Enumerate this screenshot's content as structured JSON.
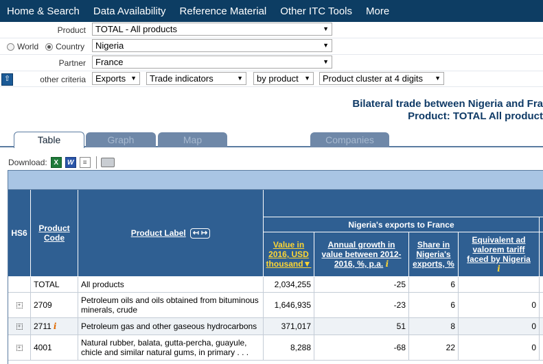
{
  "nav": [
    "Home & Search",
    "Data Availability",
    "Reference Material",
    "Other ITC Tools",
    "More"
  ],
  "criteria": {
    "product_label": "Product",
    "product_value": "TOTAL - All products",
    "world_label": "World",
    "country_label": "Country",
    "country_value": "Nigeria",
    "partner_label": "Partner",
    "partner_value": "France",
    "other_label": "other criteria",
    "flow_value": "Exports",
    "indicator_value": "Trade indicators",
    "by_value": "by product",
    "cluster_value": "Product cluster at 4 digits"
  },
  "title": {
    "line1": "Bilateral trade between Nigeria and Fra",
    "line2": "Product: TOTAL All product"
  },
  "tabs": [
    "Table",
    "Graph",
    "Map",
    "Companies"
  ],
  "download_label": "Download:",
  "download_icons": {
    "excel": "X",
    "word": "W",
    "text": "≡"
  },
  "table": {
    "col_hs6": "HS6",
    "col_code": "Product Code",
    "col_label": "Product Label",
    "label_toggle": "↤ ↦",
    "group_header": "Nigeria's exports to France",
    "col_value": "Value in 2016, USD thousand",
    "sort_arrow": "▼",
    "col_growth": "Annual growth in value between 2012-2016, %, p.a.",
    "col_share": "Share in Nigeria's exports, %",
    "col_tariff": "Equivalent ad valorem tariff faced by Nigeria",
    "info_glyph": "i",
    "expand_glyph": "+",
    "rows": [
      {
        "code": "TOTAL",
        "label": "All products",
        "value": "2,034,255",
        "growth": "-25",
        "share": "6",
        "tariff": "",
        "expand": false,
        "info": false
      },
      {
        "code": "2709",
        "label": "Petroleum oils and oils obtained from bituminous minerals, crude",
        "value": "1,646,935",
        "growth": "-23",
        "share": "6",
        "tariff": "0",
        "expand": true,
        "info": false
      },
      {
        "code": "2711",
        "label": "Petroleum gas and other gaseous hydrocarbons",
        "value": "371,017",
        "growth": "51",
        "share": "8",
        "tariff": "0",
        "expand": true,
        "info": true
      },
      {
        "code": "4001",
        "label": "Natural rubber, balata, gutta-percha, guayule, chicle and similar natural gums, in primary . . .",
        "value": "8,288",
        "growth": "-68",
        "share": "22",
        "tariff": "0",
        "expand": true,
        "info": false
      }
    ]
  }
}
